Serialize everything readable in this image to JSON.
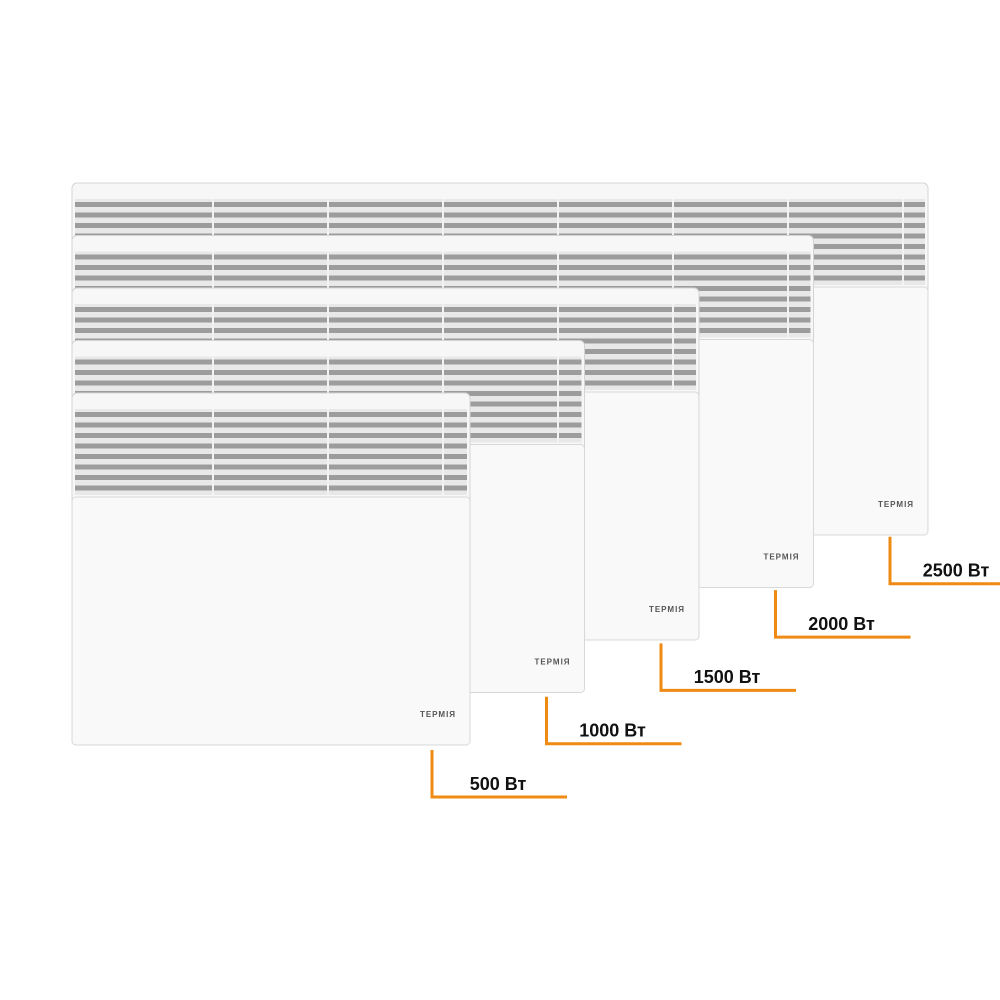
{
  "heaters": [
    {
      "label": "500 Вт",
      "brand": "ТЕРМІЯ"
    },
    {
      "label": "1000 Вт",
      "brand": "ТЕРМІЯ"
    },
    {
      "label": "1500 Вт",
      "brand": "ТЕРМІЯ"
    },
    {
      "label": "2000 Вт",
      "brand": "ТЕРМІЯ"
    },
    {
      "label": "2500 Вт",
      "brand": "ТЕРМІЯ"
    }
  ]
}
